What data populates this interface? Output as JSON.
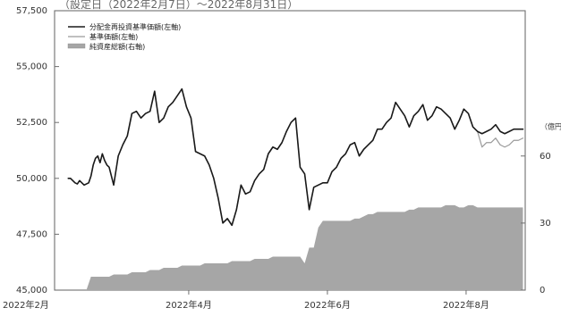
{
  "title": "（設定日（2022年2月7日）～2022年8月31日）",
  "chart_data": {
    "type": "line",
    "title": "（設定日（2022年2月7日）～2022年8月31日）",
    "x_tick_labels": [
      "2022年2月",
      "2022年4月",
      "2022年6月",
      "2022年8月"
    ],
    "x_tick_positions": [
      -6,
      53,
      114,
      175
    ],
    "x_range": [
      -6,
      201
    ],
    "left_axis": {
      "ylim": [
        45000,
        57500
      ],
      "ticks": [
        45000,
        47500,
        50000,
        52500,
        55000,
        57500
      ],
      "tick_labels": [
        "45,000",
        "47,500",
        "50,000",
        "52,500",
        "55,000",
        "57,500"
      ]
    },
    "right_axis": {
      "unit_label": "（億円）",
      "ylim": [
        0,
        125
      ],
      "ticks": [
        0,
        30,
        60
      ],
      "tick_labels": [
        "0",
        "30",
        "60"
      ]
    },
    "legend": {
      "position": "top-left",
      "entries": [
        {
          "label": "分配金再投資基準価額(左軸)",
          "style": "line",
          "color": "#1a1a1a"
        },
        {
          "label": "基準価額(左軸)",
          "style": "line",
          "color": "#9a9a9a"
        },
        {
          "label": "純資産総額(右軸)",
          "style": "area",
          "color": "#a6a6a6"
        }
      ]
    },
    "series": [
      {
        "name": "分配金再投資基準価額(左軸)",
        "axis": "left",
        "color": "#1a1a1a",
        "x": [
          0,
          1,
          2,
          3,
          4,
          5,
          6,
          7,
          8,
          9,
          10,
          11,
          12,
          13,
          14,
          15,
          16,
          17,
          18,
          20,
          22,
          24,
          26,
          28,
          30,
          32,
          34,
          36,
          38,
          40,
          42,
          44,
          46,
          48,
          50,
          52,
          54,
          56,
          58,
          60,
          62,
          64,
          66,
          68,
          70,
          72,
          74,
          76,
          78,
          80,
          82,
          84,
          86,
          88,
          90,
          92,
          94,
          96,
          98,
          100,
          102,
          104,
          106,
          108,
          110,
          112,
          114,
          116,
          118,
          120,
          122,
          124,
          126,
          128,
          130,
          132,
          134,
          136,
          138,
          140,
          142,
          144,
          146,
          148,
          150,
          152,
          154,
          156,
          158,
          160,
          162,
          164,
          166,
          168,
          170,
          172,
          174,
          176,
          178,
          180,
          182,
          184,
          186,
          188,
          190,
          192,
          194,
          196,
          198,
          200
        ],
        "y": [
          50000,
          50000,
          49900,
          49800,
          49750,
          49900,
          49800,
          49700,
          49750,
          49800,
          50100,
          50600,
          50900,
          51000,
          50700,
          51100,
          50800,
          50600,
          50500,
          49700,
          51000,
          51500,
          51900,
          52900,
          53000,
          52700,
          52900,
          53000,
          53900,
          52500,
          52700,
          53200,
          53400,
          53700,
          54000,
          53200,
          52700,
          51200,
          51100,
          51000,
          50600,
          50000,
          49100,
          48000,
          48200,
          47900,
          48600,
          49700,
          49300,
          49400,
          49900,
          50200,
          50400,
          51100,
          51400,
          51300,
          51600,
          52100,
          52500,
          52700,
          50500,
          50200,
          48600,
          49600,
          49700,
          49800,
          49800,
          50300,
          50500,
          50900,
          51100,
          51500,
          51600,
          51000,
          51300,
          51500,
          51700,
          52200,
          52200,
          52500,
          52700,
          53400,
          53100,
          52800,
          52300,
          52800,
          53000,
          53300,
          52600,
          52800,
          53200,
          53100,
          52900,
          52700,
          52200,
          52600,
          53100,
          52900,
          52300,
          52100,
          52000,
          52100,
          52200,
          52400,
          52100,
          52000,
          52100,
          52200,
          52200,
          52200
        ]
      },
      {
        "name": "基準価額(左軸)",
        "axis": "left",
        "color": "#9a9a9a",
        "x": [
          0,
          1,
          2,
          3,
          4,
          5,
          6,
          7,
          8,
          9,
          10,
          11,
          12,
          13,
          14,
          15,
          16,
          17,
          18,
          20,
          22,
          24,
          26,
          28,
          30,
          32,
          34,
          36,
          38,
          40,
          42,
          44,
          46,
          48,
          50,
          52,
          54,
          56,
          58,
          60,
          62,
          64,
          66,
          68,
          70,
          72,
          74,
          76,
          78,
          80,
          82,
          84,
          86,
          88,
          90,
          92,
          94,
          96,
          98,
          100,
          102,
          104,
          106,
          108,
          110,
          112,
          114,
          116,
          118,
          120,
          122,
          124,
          126,
          128,
          130,
          132,
          134,
          136,
          138,
          140,
          142,
          144,
          146,
          148,
          150,
          152,
          154,
          156,
          158,
          160,
          162,
          164,
          166,
          168,
          170,
          172,
          174,
          176,
          178,
          180,
          182,
          184,
          186,
          188,
          190,
          192,
          194,
          196,
          198,
          200
        ],
        "y": [
          50000,
          50000,
          49900,
          49800,
          49750,
          49900,
          49800,
          49700,
          49750,
          49800,
          50100,
          50600,
          50900,
          51000,
          50700,
          51100,
          50800,
          50600,
          50500,
          49700,
          51000,
          51500,
          51900,
          52900,
          53000,
          52700,
          52900,
          53000,
          53900,
          52500,
          52700,
          53200,
          53400,
          53700,
          54000,
          53200,
          52700,
          51200,
          51100,
          51000,
          50600,
          50000,
          49100,
          48000,
          48200,
          47900,
          48600,
          49700,
          49300,
          49400,
          49900,
          50200,
          50400,
          51100,
          51400,
          51300,
          51600,
          52100,
          52500,
          52700,
          50500,
          50200,
          48600,
          49600,
          49700,
          49800,
          49800,
          50300,
          50500,
          50900,
          51100,
          51500,
          51600,
          51000,
          51300,
          51500,
          51700,
          52200,
          52200,
          52500,
          52700,
          53400,
          53100,
          52800,
          52300,
          52800,
          53000,
          53300,
          52600,
          52800,
          53200,
          53100,
          52900,
          52700,
          52200,
          52600,
          53100,
          52900,
          52300,
          52100,
          51400,
          51600,
          51600,
          51800,
          51500,
          51400,
          51500,
          51700,
          51700,
          51800
        ]
      },
      {
        "name": "純資産総額(右軸)",
        "axis": "right",
        "type": "area",
        "color": "#a6a6a6",
        "x": [
          -6,
          2,
          4,
          6,
          8,
          10,
          12,
          14,
          16,
          18,
          20,
          22,
          24,
          26,
          28,
          30,
          32,
          34,
          36,
          38,
          40,
          42,
          44,
          46,
          48,
          50,
          52,
          54,
          56,
          58,
          60,
          62,
          64,
          66,
          68,
          70,
          72,
          74,
          76,
          78,
          80,
          82,
          84,
          86,
          88,
          90,
          92,
          94,
          96,
          98,
          100,
          102,
          104,
          106,
          108,
          110,
          112,
          114,
          116,
          118,
          120,
          122,
          124,
          126,
          128,
          130,
          132,
          134,
          136,
          138,
          140,
          142,
          144,
          146,
          148,
          150,
          152,
          154,
          156,
          158,
          160,
          162,
          164,
          166,
          168,
          170,
          172,
          174,
          176,
          178,
          180,
          182,
          184,
          186,
          188,
          190,
          192,
          194,
          196,
          198,
          200
        ],
        "y": [
          0,
          0,
          0,
          0,
          0,
          6,
          6,
          6,
          6,
          6,
          7,
          7,
          7,
          7,
          8,
          8,
          8,
          8,
          9,
          9,
          9,
          10,
          10,
          10,
          10,
          11,
          11,
          11,
          11,
          11,
          12,
          12,
          12,
          12,
          12,
          12,
          13,
          13,
          13,
          13,
          13,
          14,
          14,
          14,
          14,
          15,
          15,
          15,
          15,
          15,
          15,
          15,
          12,
          19,
          19,
          28,
          31,
          31,
          31,
          31,
          31,
          31,
          31,
          32,
          32,
          33,
          34,
          34,
          35,
          35,
          35,
          35,
          35,
          35,
          35,
          36,
          36,
          37,
          37,
          37,
          37,
          37,
          37,
          38,
          38,
          38,
          37,
          37,
          38,
          38,
          37,
          37,
          37,
          37,
          37,
          37,
          37,
          37,
          37,
          37,
          37
        ]
      }
    ]
  }
}
